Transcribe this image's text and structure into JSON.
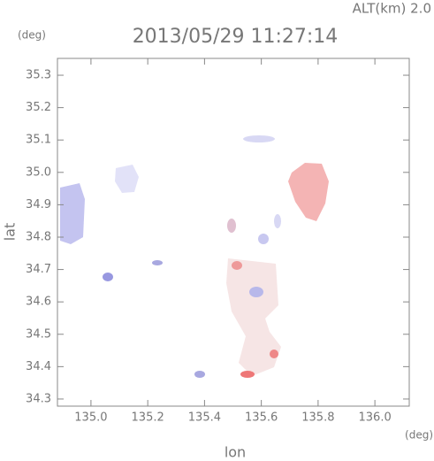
{
  "chart_data": {
    "type": "map",
    "title": "2013/05/29 11:27:14",
    "annotation": "ALT(km) 2.0",
    "x_label": "lon",
    "y_label": "lat",
    "x_unit": "(deg)",
    "y_unit": "(deg)",
    "xlim": [
      134.882,
      136.121
    ],
    "ylim": [
      34.278,
      35.352
    ],
    "xticks": [
      {
        "value": 135,
        "label": "135.0"
      },
      135.2,
      135.4,
      135.6,
      135.8,
      {
        "value": 136,
        "label": "136.0"
      }
    ],
    "yticks": [
      34.3,
      34.4,
      34.5,
      34.6,
      34.7,
      34.8,
      34.9,
      {
        "value": 35,
        "label": "35.0"
      },
      35.1,
      35.2,
      35.3
    ]
  }
}
